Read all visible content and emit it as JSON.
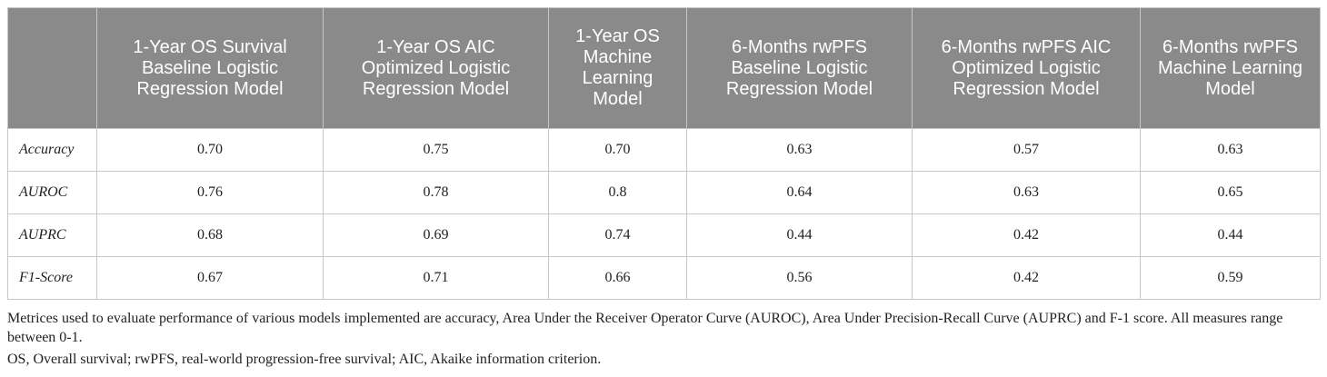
{
  "table": {
    "corner": "",
    "columns": [
      "1-Year OS Survival Baseline Logistic Regression Model",
      "1-Year OS AIC Optimized Logistic Regression Model",
      "1-Year OS Machine Learning Model",
      "6-Months rwPFS Baseline Logistic Regression Model",
      "6-Months rwPFS AIC Optimized Logistic Regression Model",
      "6-Months rwPFS Machine Learning Model"
    ],
    "rows": [
      {
        "label": "Accuracy",
        "values": [
          "0.70",
          "0.75",
          "0.70",
          "0.63",
          "0.57",
          "0.63"
        ]
      },
      {
        "label": "AUROC",
        "values": [
          "0.76",
          "0.78",
          "0.8",
          "0.64",
          "0.63",
          "0.65"
        ]
      },
      {
        "label": "AUPRC",
        "values": [
          "0.68",
          "0.69",
          "0.74",
          "0.44",
          "0.42",
          "0.44"
        ]
      },
      {
        "label": "F1-Score",
        "values": [
          "0.67",
          "0.71",
          "0.66",
          "0.56",
          "0.42",
          "0.59"
        ]
      }
    ]
  },
  "footnote": {
    "description": "Metrices used to evaluate performance of various models implemented are accuracy, Area Under the Receiver Operator Curve (AUROC), Area Under Precision-Recall Curve (AUPRC) and F-1 score. All measures range between 0-1.",
    "abbreviations": "OS, Overall survival; rwPFS, real-world progression-free survival; AIC, Akaike information criterion."
  },
  "colors": {
    "header_background": "#8a8a8a",
    "header_text": "#ffffff",
    "grid_line": "#c8c8c8",
    "body_text": "#222222"
  }
}
